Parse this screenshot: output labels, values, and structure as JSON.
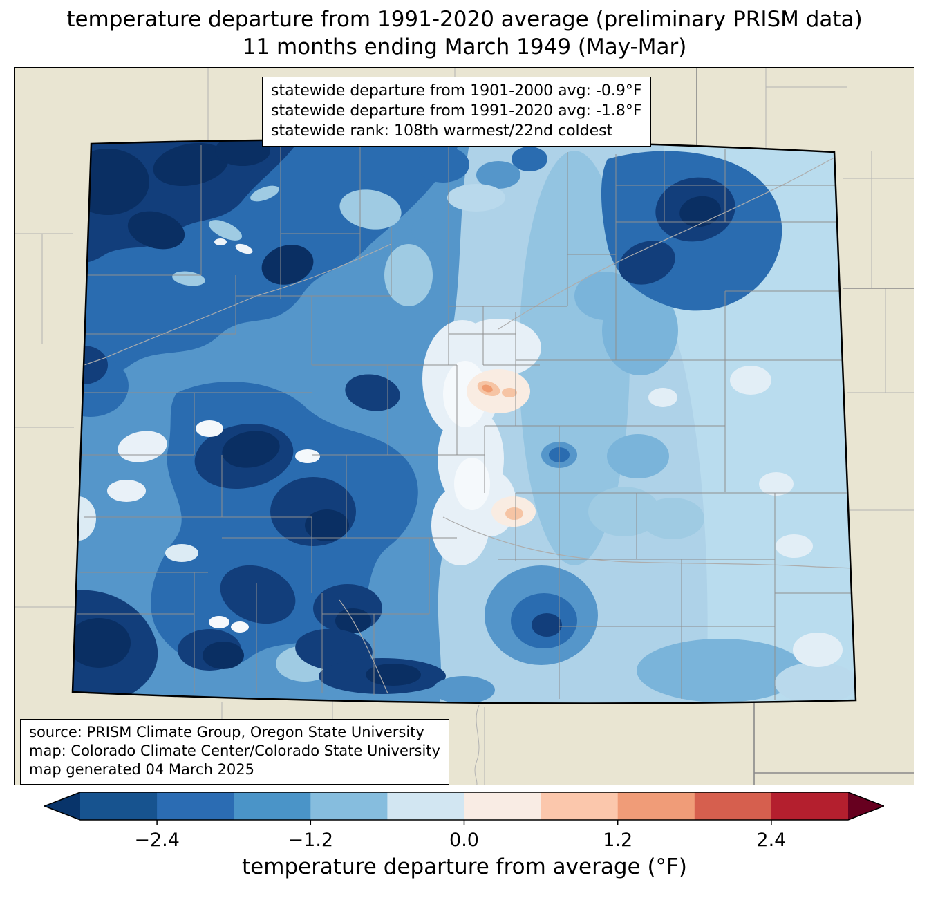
{
  "title": {
    "line1": "temperature departure from 1991-2020 average (preliminary PRISM data)",
    "line2": "11 months ending March 1949 (May-Mar)"
  },
  "stats_box": {
    "line1": "statewide departure from 1901-2000 avg: -0.9°F",
    "line2": "statewide departure from 1991-2020 avg: -1.8°F",
    "line3": "statewide rank: 108th warmest/22nd coldest"
  },
  "credits_box": {
    "line1": "source: PRISM Climate Group, Oregon State University",
    "line2": "map: Colorado Climate Center/Colorado State University",
    "line3": "map generated 04 March 2025"
  },
  "colorbar": {
    "label": "temperature departure from average (°F)",
    "range": [
      -3.0,
      3.0
    ],
    "segment_colors": [
      "#17538f",
      "#2b6cb3",
      "#4a94c8",
      "#86bdde",
      "#d2e6f2",
      "#f9ece4",
      "#fbc7ac",
      "#f09c78",
      "#d65f4e",
      "#b41f2e"
    ],
    "arrow_left_color": "#08346a",
    "arrow_right_color": "#67001f",
    "ticks": [
      {
        "value": -2.4,
        "label": "−2.4"
      },
      {
        "value": -1.2,
        "label": "−1.2"
      },
      {
        "value": 0.0,
        "label": "0.0"
      },
      {
        "value": 1.2,
        "label": "1.2"
      },
      {
        "value": 2.4,
        "label": "2.4"
      }
    ]
  },
  "map": {
    "region": "Colorado",
    "background_color": "#e9e5d2",
    "state_border_color": "#000000",
    "county_line_color": "#8f8f8f",
    "neighbor_line_color": "#b3b3b3",
    "palette": {
      "navy": "#0a2f63",
      "dark_blue": "#123e7b",
      "strong_blue": "#2a6cb0",
      "medium_blue": "#5596ca",
      "blue": "#7ab4da",
      "light_blue": "#9fcbe3",
      "pale_blue": "#b9d9ec",
      "very_pale_blue": "#e2eef6",
      "near_white": "#f5f9fc",
      "warm_white": "#f9ece2",
      "pale_pink": "#f6c4a4",
      "pink": "#f09d72"
    }
  }
}
